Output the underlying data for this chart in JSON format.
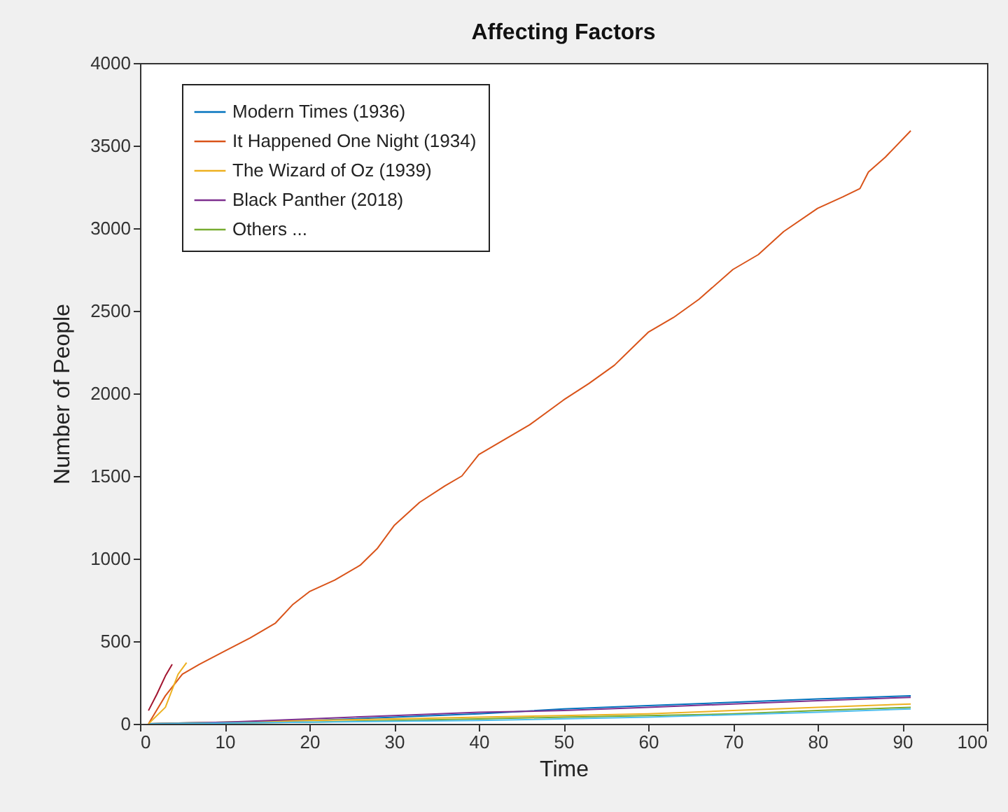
{
  "chart_data": {
    "type": "line",
    "title": "Affecting Factors",
    "xlabel": "Time",
    "ylabel": "Number of People",
    "xlim": [
      0,
      100
    ],
    "xticks": [
      0,
      10,
      20,
      30,
      40,
      50,
      60,
      70,
      80,
      90,
      100
    ],
    "ylim": [
      0,
      4000
    ],
    "yticks": [
      0,
      500,
      1000,
      1500,
      2000,
      2500,
      3000,
      3500,
      4000
    ],
    "grid": false,
    "legend": "top left",
    "line_style": "solid",
    "marker": "none",
    "series": [
      {
        "name": "Modern Times (1936)",
        "color": "#0072bd",
        "x": [
          1,
          10,
          20,
          30,
          40,
          50,
          60,
          70,
          80,
          91
        ],
        "values": [
          0,
          10,
          20,
          40,
          60,
          90,
          110,
          130,
          150,
          170
        ]
      },
      {
        "name": "It Happened One Night (1934)",
        "color": "#d95319",
        "x": [
          1,
          3,
          5,
          7,
          10,
          13,
          16,
          18,
          20,
          23,
          26,
          28,
          30,
          33,
          36,
          38,
          40,
          43,
          46,
          50,
          53,
          56,
          60,
          63,
          66,
          70,
          73,
          76,
          80,
          83,
          85,
          86,
          88,
          91
        ],
        "values": [
          0,
          170,
          300,
          360,
          440,
          520,
          610,
          720,
          800,
          870,
          960,
          1060,
          1200,
          1340,
          1440,
          1500,
          1630,
          1720,
          1810,
          1960,
          2060,
          2170,
          2370,
          2460,
          2570,
          2750,
          2840,
          2980,
          3120,
          3190,
          3240,
          3340,
          3430,
          3590
        ]
      },
      {
        "name": "The Wizard of Oz (1939)",
        "color": "#edb120",
        "x": [
          1,
          10,
          20,
          30,
          40,
          50,
          60,
          70,
          80,
          91
        ],
        "values": [
          0,
          10,
          20,
          30,
          40,
          50,
          60,
          80,
          100,
          120
        ]
      },
      {
        "name": "Black Panther (2018)",
        "color": "#7e2f8e",
        "x": [
          1,
          10,
          20,
          30,
          40,
          50,
          60,
          70,
          80,
          91
        ],
        "values": [
          0,
          10,
          30,
          50,
          70,
          80,
          100,
          120,
          140,
          160
        ]
      },
      {
        "name": "Others ...",
        "color": "#77ac30",
        "x": [
          1,
          20,
          30,
          40,
          50,
          60,
          70,
          80,
          91
        ],
        "values": [
          0,
          10,
          20,
          30,
          40,
          50,
          60,
          80,
          100
        ]
      },
      {
        "color": "#4dbeee",
        "x": [
          1,
          20,
          40,
          60,
          80,
          91
        ],
        "values": [
          0,
          10,
          20,
          40,
          70,
          90
        ]
      },
      {
        "color": "#a2142f",
        "x": [
          1,
          2,
          3,
          3.8
        ],
        "values": [
          80,
          180,
          290,
          360
        ]
      },
      {
        "color": "#edb120",
        "x": [
          1,
          3,
          4.5,
          5.5
        ],
        "values": [
          0,
          100,
          300,
          370
        ]
      }
    ]
  }
}
